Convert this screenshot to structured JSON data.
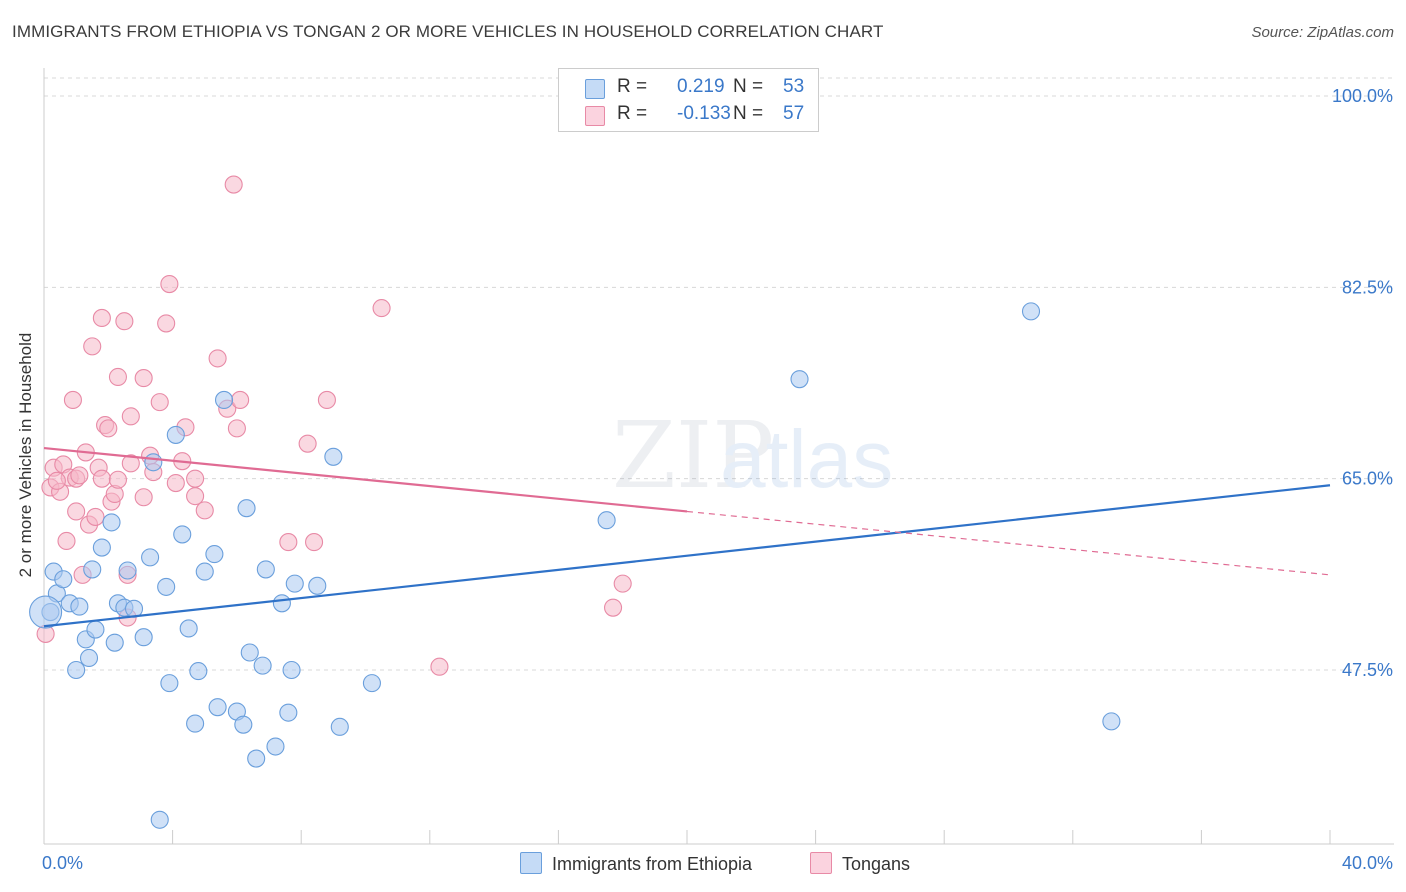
{
  "header": {
    "title": "IMMIGRANTS FROM ETHIOPIA VS TONGAN 2 OR MORE VEHICLES IN HOUSEHOLD CORRELATION CHART",
    "source": "Source: ZipAtlas.com"
  },
  "watermark": {
    "zip": "ZIP",
    "atlas": "atlas"
  },
  "legend": {
    "rows": [
      {
        "r_label": "R =",
        "r_value": "0.219",
        "n_label": "N =",
        "n_value": "53",
        "color": "#a9c8f0"
      },
      {
        "r_label": "R =",
        "r_value": "-0.133",
        "n_label": "N =",
        "n_value": "57",
        "color": "#f5b8c9"
      }
    ]
  },
  "bottom_legend": {
    "items": [
      {
        "label": "Immigrants from Ethiopia",
        "color": "#a9c8f0"
      },
      {
        "label": "Tongans",
        "color": "#f5b8c9"
      }
    ]
  },
  "colors": {
    "blue_fill": "#a9c8f0",
    "blue_stroke": "#6a9fdc",
    "blue_line": "#2f72c8",
    "pink_fill": "#f5b8c9",
    "pink_stroke": "#e88aa6",
    "pink_line": "#e06b93",
    "grid": "#d8d8d8",
    "tick_text": "#3a78c9"
  },
  "chart_data": {
    "type": "scatter",
    "title": "IMMIGRANTS FROM ETHIOPIA VS TONGAN 2 OR MORE VEHICLES IN HOUSEHOLD CORRELATION CHART",
    "xlabel": "",
    "ylabel": "2 or more Vehicles in Household",
    "xlim": [
      0,
      40
    ],
    "ylim": [
      33,
      103
    ],
    "x_tick_labels": [
      "0.0%",
      "40.0%"
    ],
    "y_ticks": [
      47.5,
      65.0,
      82.5,
      100.0
    ],
    "y_tick_labels": [
      "47.5%",
      "65.0%",
      "82.5%",
      "100.0%"
    ],
    "grid": true,
    "legend_position": "top-center",
    "series": [
      {
        "name": "Immigrants from Ethiopia",
        "trend": {
          "x": [
            0,
            40
          ],
          "y": [
            51.5,
            64.4
          ],
          "solid_until": 40
        },
        "points": [
          [
            0.2,
            52.8
          ],
          [
            0.3,
            56.5
          ],
          [
            0.4,
            54.5
          ],
          [
            0.6,
            55.8
          ],
          [
            0.8,
            53.6
          ],
          [
            1.0,
            47.5
          ],
          [
            1.1,
            53.3
          ],
          [
            1.3,
            50.3
          ],
          [
            1.5,
            56.7
          ],
          [
            1.6,
            51.2
          ],
          [
            1.8,
            58.7
          ],
          [
            2.1,
            61.0
          ],
          [
            2.3,
            53.6
          ],
          [
            2.5,
            53.2
          ],
          [
            2.6,
            56.6
          ],
          [
            2.8,
            53.1
          ],
          [
            3.1,
            50.5
          ],
          [
            3.3,
            57.8
          ],
          [
            3.4,
            66.5
          ],
          [
            3.6,
            33.8
          ],
          [
            3.8,
            55.1
          ],
          [
            3.9,
            46.3
          ],
          [
            4.1,
            69.0
          ],
          [
            4.3,
            59.9
          ],
          [
            4.5,
            51.3
          ],
          [
            4.7,
            42.6
          ],
          [
            4.8,
            47.4
          ],
          [
            5.0,
            56.5
          ],
          [
            5.3,
            58.1
          ],
          [
            5.4,
            44.1
          ],
          [
            5.6,
            72.2
          ],
          [
            6.0,
            43.7
          ],
          [
            6.2,
            42.5
          ],
          [
            6.3,
            62.3
          ],
          [
            6.4,
            49.1
          ],
          [
            6.8,
            47.9
          ],
          [
            6.9,
            56.7
          ],
          [
            7.2,
            40.5
          ],
          [
            7.4,
            53.6
          ],
          [
            7.6,
            43.6
          ],
          [
            7.7,
            47.5
          ],
          [
            7.8,
            55.4
          ],
          [
            6.6,
            39.4
          ],
          [
            8.5,
            55.2
          ],
          [
            9.0,
            67.0
          ],
          [
            9.2,
            42.3
          ],
          [
            10.2,
            46.3
          ],
          [
            17.5,
            61.2
          ],
          [
            23.5,
            74.1
          ],
          [
            30.7,
            80.3
          ],
          [
            33.2,
            42.8
          ],
          [
            1.4,
            48.6
          ],
          [
            2.2,
            50.0
          ]
        ]
      },
      {
        "name": "Tongans",
        "trend": {
          "x": [
            0,
            40
          ],
          "y": [
            67.8,
            56.2
          ],
          "solid_until": 20
        },
        "points": [
          [
            0.05,
            50.8
          ],
          [
            0.2,
            64.2
          ],
          [
            0.3,
            66.0
          ],
          [
            0.5,
            63.8
          ],
          [
            0.6,
            66.3
          ],
          [
            0.7,
            59.3
          ],
          [
            0.8,
            65.1
          ],
          [
            0.9,
            72.2
          ],
          [
            1.0,
            65.0
          ],
          [
            1.1,
            65.3
          ],
          [
            1.2,
            56.2
          ],
          [
            1.3,
            67.4
          ],
          [
            1.4,
            60.8
          ],
          [
            1.5,
            77.1
          ],
          [
            1.6,
            61.5
          ],
          [
            1.7,
            66.0
          ],
          [
            1.8,
            65.0
          ],
          [
            1.8,
            79.7
          ],
          [
            1.9,
            69.9
          ],
          [
            2.0,
            69.6
          ],
          [
            2.1,
            62.9
          ],
          [
            2.2,
            63.6
          ],
          [
            2.3,
            64.9
          ],
          [
            2.3,
            74.3
          ],
          [
            2.5,
            79.4
          ],
          [
            2.6,
            56.2
          ],
          [
            2.6,
            52.3
          ],
          [
            2.7,
            66.4
          ],
          [
            2.7,
            70.7
          ],
          [
            3.1,
            74.2
          ],
          [
            3.1,
            63.3
          ],
          [
            3.3,
            67.1
          ],
          [
            3.4,
            65.6
          ],
          [
            3.6,
            72.0
          ],
          [
            3.8,
            79.2
          ],
          [
            3.9,
            82.8
          ],
          [
            4.1,
            64.6
          ],
          [
            4.3,
            66.6
          ],
          [
            4.4,
            69.7
          ],
          [
            4.7,
            63.4
          ],
          [
            4.7,
            65.0
          ],
          [
            5.0,
            62.1
          ],
          [
            5.4,
            76.0
          ],
          [
            5.7,
            71.4
          ],
          [
            5.9,
            91.9
          ],
          [
            6.0,
            69.6
          ],
          [
            6.1,
            72.2
          ],
          [
            7.6,
            59.2
          ],
          [
            8.2,
            68.2
          ],
          [
            8.4,
            59.2
          ],
          [
            8.8,
            72.2
          ],
          [
            10.5,
            80.6
          ],
          [
            12.3,
            47.8
          ],
          [
            17.7,
            53.2
          ],
          [
            18.0,
            55.4
          ],
          [
            0.4,
            64.8
          ],
          [
            1.0,
            62.0
          ]
        ]
      }
    ]
  }
}
